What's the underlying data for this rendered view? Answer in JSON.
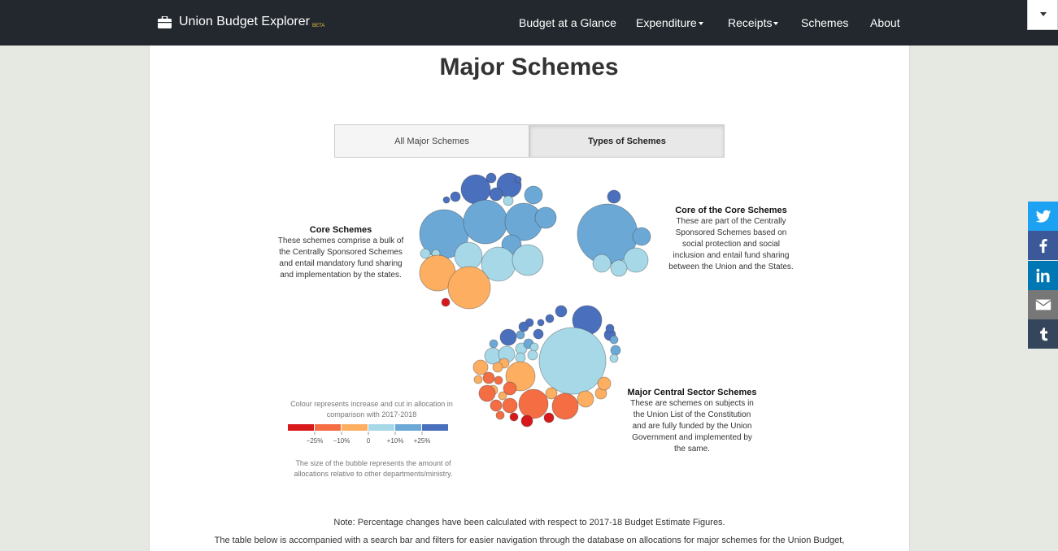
{
  "navbar": {
    "brand": "Union Budget Explorer",
    "beta": "BETA",
    "items": [
      "Budget at a Glance",
      "Expenditure",
      "Receipts",
      "Schemes",
      "About"
    ]
  },
  "page": {
    "title": "Major Schemes"
  },
  "tabs": {
    "all": "All Major Schemes",
    "types": "Types of Schemes"
  },
  "groups": {
    "core": {
      "title": "Core Schemes",
      "description": "These schemes comprise a bulk of the Centrally Sponsored Schemes and entail mandatory fund sharing and implementation by the states."
    },
    "core_of_core": {
      "title": "Core of the Core Schemes",
      "description": "These are part of the Centrally Sponsored Schemes based on social protection and social inclusion and entail fund sharing between the Union and the States."
    },
    "central_sector": {
      "title": "Major Central Sector Schemes",
      "description": "These are schemes on subjects in the Union List of the Constitution and are fully funded by the Union Government and implemented by the same."
    }
  },
  "legend": {
    "caption": "Colour represents increase and cut in allocation in comparison with 2017-2018",
    "ticks": [
      "−25%",
      "−10%",
      "0",
      "+10%",
      "+25%"
    ],
    "colors": [
      "#d7191c",
      "#f46d43",
      "#fdae61",
      "#a6d8e8",
      "#6ba8d6",
      "#4a6fbd"
    ],
    "size_note": "The size of the bubble represents the amount of allocations relative to other departments/ministry."
  },
  "notes": {
    "percentage": "Note: Percentage changes have been calculated with respect to 2017-18 Budget Estimate Figures.",
    "table": "The table below is accompanied with a search bar and filters for easier navigation through the database on allocations for major schemes for the Union Budget,"
  },
  "social": [
    "twitter-icon",
    "facebook-icon",
    "linkedin-icon",
    "email-icon",
    "tumblr-icon"
  ],
  "social_colors": [
    "#1da1f2",
    "#3b5998",
    "#0077b5",
    "#777777",
    "#35465c"
  ]
}
